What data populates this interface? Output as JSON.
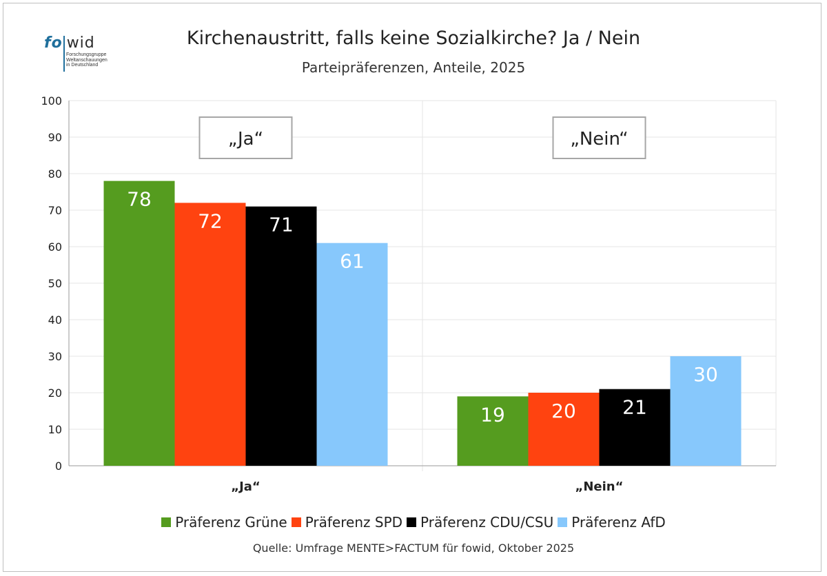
{
  "logo": {
    "fo": "fo",
    "wid": "wid",
    "subtext": "Forschungsgruppe\nWeltanschauungen\nin Deutschland"
  },
  "chart_data": {
    "type": "bar",
    "title": "Kirchenaustritt, falls keine Sozialkirche? Ja / Nein",
    "subtitle": "Parteipräferenzen, Anteile, 2025",
    "categories": [
      "„Ja“",
      "„Nein“"
    ],
    "category_boxes": [
      "„Ja“",
      "„Nein“"
    ],
    "ylim": [
      0,
      100
    ],
    "yticks": [
      0,
      10,
      20,
      30,
      40,
      50,
      60,
      70,
      80,
      90,
      100
    ],
    "grid": true,
    "legend_position": "bottom",
    "series": [
      {
        "name": "Präferenz Grüne",
        "color": "#559c1f",
        "label_color": "#ffffff",
        "values": [
          78,
          19
        ]
      },
      {
        "name": "Präferenz SPD",
        "color": "#ff4310",
        "label_color": "#ffffff",
        "values": [
          72,
          20
        ]
      },
      {
        "name": "Präferenz CDU/CSU",
        "color": "#000000",
        "label_color": "#ffffff",
        "values": [
          71,
          21
        ]
      },
      {
        "name": "Präferenz AfD",
        "color": "#87c8fc",
        "label_color": "#ffffff",
        "values": [
          61,
          30
        ]
      }
    ]
  },
  "source": "Quelle: Umfrage MENTE>FACTUM für fowid, Oktober 2025"
}
